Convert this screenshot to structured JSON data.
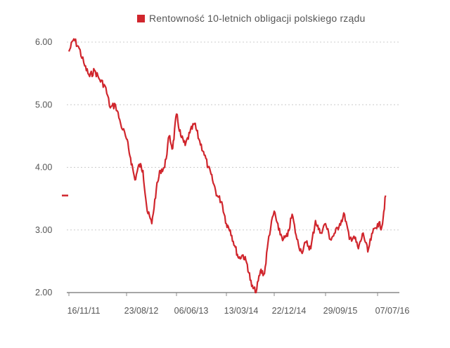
{
  "colors": {
    "series": "#d0262d",
    "grid": "#cccccc",
    "axis": "#888888",
    "text": "#555555"
  },
  "legend": {
    "label": "Rentowność 10-letnich obligacji polskiego rządu"
  },
  "chart_data": {
    "type": "line",
    "title": "",
    "xlabel": "",
    "ylabel": "",
    "ylim": [
      2.0,
      6.0
    ],
    "grid": true,
    "legend_position": "top-center",
    "y_ticks": [
      "6.00",
      "5.00",
      "4.00",
      "3.00",
      "2.00"
    ],
    "x_ticks": [
      "16/11/11",
      "23/08/12",
      "06/06/13",
      "13/03/14",
      "22/12/14",
      "29/09/15",
      "07/07/16"
    ],
    "last_value_marker": 3.55,
    "series": [
      {
        "name": "Rentowność 10-letnich obligacji polskiego rządu",
        "x": [
          "2011-11-16",
          "2011-12-10",
          "2012-01-05",
          "2012-02-01",
          "2012-02-25",
          "2012-03-20",
          "2012-04-14",
          "2012-05-10",
          "2012-06-05",
          "2012-06-30",
          "2012-07-25",
          "2012-08-23",
          "2012-09-15",
          "2012-10-10",
          "2012-11-05",
          "2012-11-25",
          "2012-12-20",
          "2013-01-15",
          "2013-02-10",
          "2013-03-05",
          "2013-03-30",
          "2013-04-25",
          "2013-05-15",
          "2013-06-06",
          "2013-06-30",
          "2013-07-25",
          "2013-08-20",
          "2013-09-15",
          "2013-10-10",
          "2013-11-05",
          "2013-12-01",
          "2013-12-25",
          "2014-01-20",
          "2014-02-15",
          "2014-03-13",
          "2014-04-05",
          "2014-05-01",
          "2014-05-25",
          "2014-06-20",
          "2014-07-15",
          "2014-08-10",
          "2014-09-05",
          "2014-10-01",
          "2014-10-25",
          "2014-11-20",
          "2014-12-22",
          "2015-01-15",
          "2015-02-10",
          "2015-03-05",
          "2015-03-30",
          "2015-04-25",
          "2015-05-20",
          "2015-06-15",
          "2015-07-10",
          "2015-08-05",
          "2015-08-30",
          "2015-09-29",
          "2015-10-25",
          "2015-11-20",
          "2015-12-15",
          "2016-01-10",
          "2016-02-05",
          "2016-03-01",
          "2016-03-25",
          "2016-04-20",
          "2016-05-15",
          "2016-06-10",
          "2016-07-07",
          "2016-07-30",
          "2016-08-20"
        ],
        "values": [
          5.85,
          6.05,
          5.9,
          5.62,
          5.45,
          5.55,
          5.4,
          5.3,
          4.95,
          5.0,
          4.7,
          4.45,
          4.15,
          3.8,
          4.05,
          3.95,
          3.3,
          3.1,
          3.65,
          3.95,
          4.0,
          4.5,
          4.3,
          4.85,
          4.5,
          4.35,
          4.55,
          4.7,
          4.45,
          4.25,
          4.0,
          3.8,
          3.55,
          3.45,
          3.1,
          3.0,
          2.75,
          2.55,
          2.6,
          2.45,
          2.1,
          2.0,
          2.35,
          2.3,
          2.9,
          3.3,
          3.0,
          2.85,
          2.9,
          3.25,
          2.85,
          2.65,
          2.8,
          2.7,
          3.15,
          2.95,
          3.1,
          2.85,
          2.95,
          3.1,
          3.25,
          2.85,
          2.9,
          2.7,
          2.95,
          2.65,
          2.95,
          3.1,
          3.05,
          3.55
        ]
      }
    ]
  }
}
